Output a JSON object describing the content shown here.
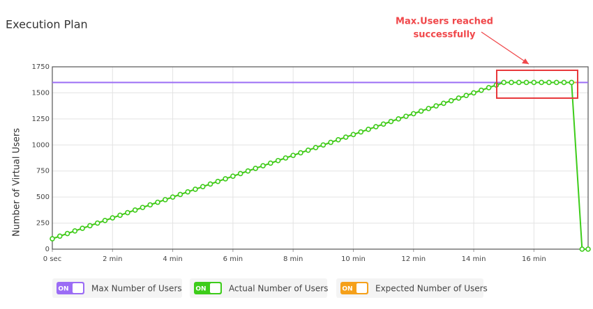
{
  "chart_data": {
    "type": "line",
    "title": "Execution Plan",
    "y_label": "Number of Virtual Users",
    "annotation": [
      "Max.Users reached",
      "successfully"
    ],
    "toggle_label": "ON",
    "xlim": [
      0,
      17.8
    ],
    "ylim": [
      0,
      1750
    ],
    "xticks": [
      {
        "value": 0,
        "label": "0 sec"
      },
      {
        "value": 2,
        "label": "2 min"
      },
      {
        "value": 4,
        "label": "4 min"
      },
      {
        "value": 6,
        "label": "6 min"
      },
      {
        "value": 8,
        "label": "8 min"
      },
      {
        "value": 10,
        "label": "10 min"
      },
      {
        "value": 12,
        "label": "12 min"
      },
      {
        "value": 14,
        "label": "14 min"
      },
      {
        "value": 16,
        "label": "16 min"
      }
    ],
    "yticks": [
      0,
      250,
      500,
      750,
      1000,
      1250,
      1500,
      1750
    ],
    "grid": true,
    "series": [
      {
        "name": "Max Number of Users",
        "color": "#9b6cf5",
        "x": [
          0,
          17.8
        ],
        "values": [
          1600,
          1600
        ]
      },
      {
        "name": "Actual Number of Users",
        "color": "#3dcc1a",
        "markers": true,
        "x": [
          0,
          0.25,
          0.5,
          0.75,
          1,
          1.25,
          1.5,
          1.75,
          2,
          2.25,
          2.5,
          2.75,
          3,
          3.25,
          3.5,
          3.75,
          4,
          4.25,
          4.5,
          4.75,
          5,
          5.25,
          5.5,
          5.75,
          6,
          6.25,
          6.5,
          6.75,
          7,
          7.25,
          7.5,
          7.75,
          8,
          8.25,
          8.5,
          8.75,
          9,
          9.25,
          9.5,
          9.75,
          10,
          10.25,
          10.5,
          10.75,
          11,
          11.25,
          11.5,
          11.75,
          12,
          12.25,
          12.5,
          12.75,
          13,
          13.25,
          13.5,
          13.75,
          14,
          14.25,
          14.5,
          14.75,
          15,
          15.25,
          15.5,
          15.75,
          16,
          16.25,
          16.5,
          16.75,
          17,
          17.25,
          17.6,
          17.8
        ],
        "values": [
          100,
          125,
          150,
          175,
          200,
          225,
          250,
          275,
          300,
          325,
          350,
          375,
          400,
          425,
          450,
          475,
          500,
          525,
          550,
          575,
          600,
          625,
          650,
          675,
          700,
          725,
          750,
          775,
          800,
          825,
          850,
          875,
          900,
          925,
          950,
          975,
          1000,
          1025,
          1050,
          1075,
          1100,
          1125,
          1150,
          1175,
          1200,
          1225,
          1250,
          1275,
          1300,
          1325,
          1350,
          1375,
          1400,
          1425,
          1450,
          1475,
          1500,
          1525,
          1550,
          1575,
          1600,
          1600,
          1600,
          1600,
          1600,
          1600,
          1600,
          1600,
          1600,
          1600,
          0,
          0
        ]
      },
      {
        "name": "Expected Number of Users",
        "color": "#f5a01a",
        "x": [
          0,
          15,
          17.4
        ],
        "values": [
          100,
          1600,
          1600
        ]
      }
    ]
  }
}
